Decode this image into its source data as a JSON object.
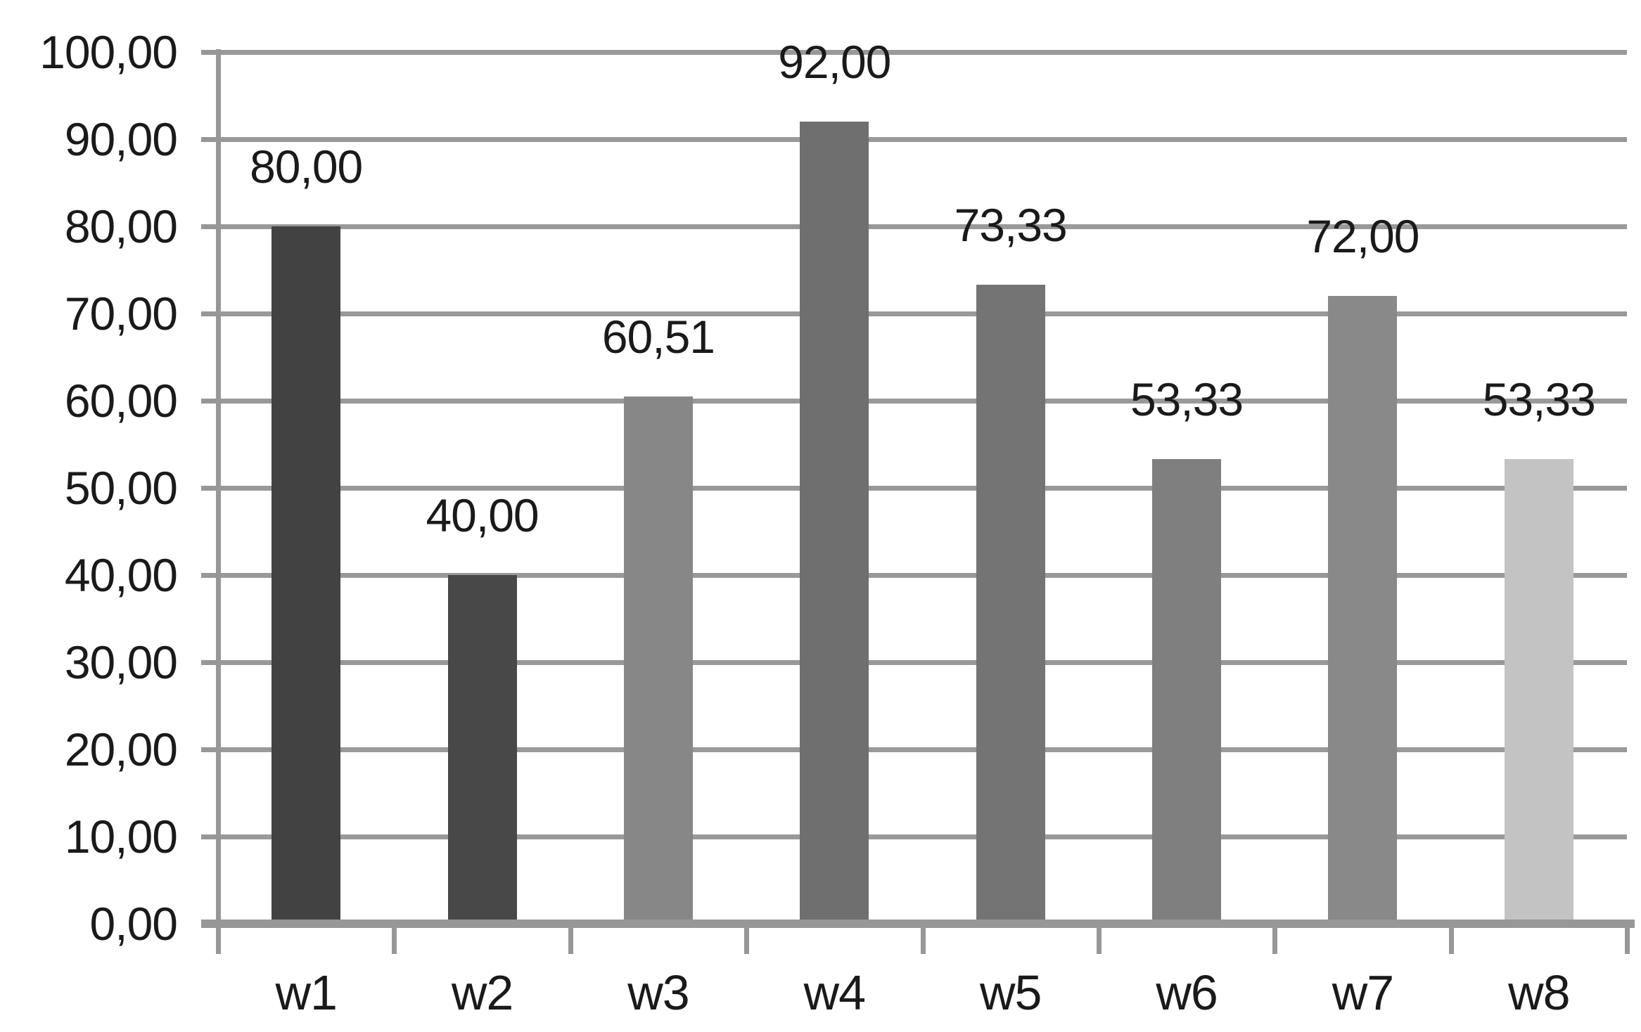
{
  "chart_data": {
    "type": "bar",
    "title": "",
    "xlabel": "",
    "ylabel": "",
    "categories": [
      "w1",
      "w2",
      "w3",
      "w4",
      "w5",
      "w6",
      "w7",
      "w8"
    ],
    "values": [
      80.0,
      40.0,
      60.51,
      92.0,
      73.33,
      53.33,
      72.0,
      53.33
    ],
    "value_labels": [
      "80,00",
      "40,00",
      "60,51",
      "92,00",
      "73,33",
      "53,33",
      "72,00",
      "53,33"
    ],
    "bar_colors": [
      "#424242",
      "#484848",
      "#878787",
      "#6f6f6f",
      "#747474",
      "#7f7f7f",
      "#898989",
      "#c3c3c3"
    ],
    "ylim": [
      0,
      100
    ],
    "ytick_step": 10,
    "ytick_labels": [
      "0,00",
      "10,00",
      "20,00",
      "30,00",
      "40,00",
      "50,00",
      "60,00",
      "70,00",
      "80,00",
      "90,00",
      "100,00"
    ],
    "decimal_separator": ",",
    "grid": true,
    "legend": false,
    "gap_width_percent": 150,
    "axis_color": "#979797",
    "grid_color": "#999999",
    "text_color": "#1a1a1a",
    "background": "#ffffff"
  }
}
